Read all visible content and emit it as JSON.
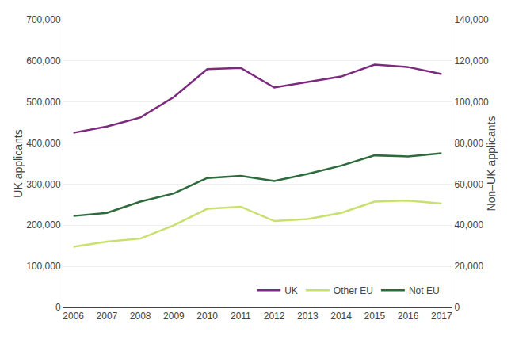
{
  "chart_data": {
    "type": "line",
    "x": [
      2006,
      2007,
      2008,
      2009,
      2010,
      2011,
      2012,
      2013,
      2014,
      2015,
      2016,
      2017
    ],
    "series": [
      {
        "name": "UK",
        "color": "#7b2a7e",
        "axis": "y",
        "values": [
          425000,
          440000,
          462000,
          512000,
          580000,
          583000,
          535000,
          549000,
          562000,
          591000,
          585000,
          568000
        ]
      },
      {
        "name": "Other EU",
        "color": "#c8e06e",
        "axis": "y2",
        "values": [
          29500,
          32000,
          33500,
          40000,
          48000,
          49000,
          42000,
          43000,
          46000,
          51500,
          52000,
          50500
        ]
      },
      {
        "name": "Not EU",
        "color": "#2d6b3c",
        "axis": "y2",
        "values": [
          44500,
          46000,
          51500,
          55500,
          63000,
          64000,
          61500,
          65000,
          69000,
          74000,
          73500,
          75000
        ]
      }
    ],
    "y_label": "UK applicants",
    "y2_label": "Non–UK applicants",
    "xlim": [
      2005.7,
      2017.3
    ],
    "xticks": [
      2006,
      2007,
      2008,
      2009,
      2010,
      2011,
      2012,
      2013,
      2014,
      2015,
      2016,
      2017
    ],
    "ylim": [
      0,
      700000
    ],
    "yticks": [
      0,
      {
        "value": 100000,
        "label": "100,000"
      },
      {
        "value": 200000,
        "label": "200,000"
      },
      {
        "value": 300000,
        "label": "300,000"
      },
      {
        "value": 400000,
        "label": "400,000"
      },
      {
        "value": 500000,
        "label": "500,000"
      },
      {
        "value": 600000,
        "label": "600,000"
      },
      {
        "value": 700000,
        "label": "700,000"
      }
    ],
    "y2lim": [
      0,
      140000
    ],
    "y2ticks": [
      0,
      {
        "value": 20000,
        "label": "20,000"
      },
      {
        "value": 40000,
        "label": "40,000"
      },
      {
        "value": 60000,
        "label": "60,000"
      },
      {
        "value": 80000,
        "label": "80,000"
      },
      {
        "value": 100000,
        "label": "100,000"
      },
      {
        "value": 120000,
        "label": "120,000"
      },
      {
        "value": 140000,
        "label": "140,000"
      }
    ],
    "grid": true,
    "legend": "lower right"
  }
}
